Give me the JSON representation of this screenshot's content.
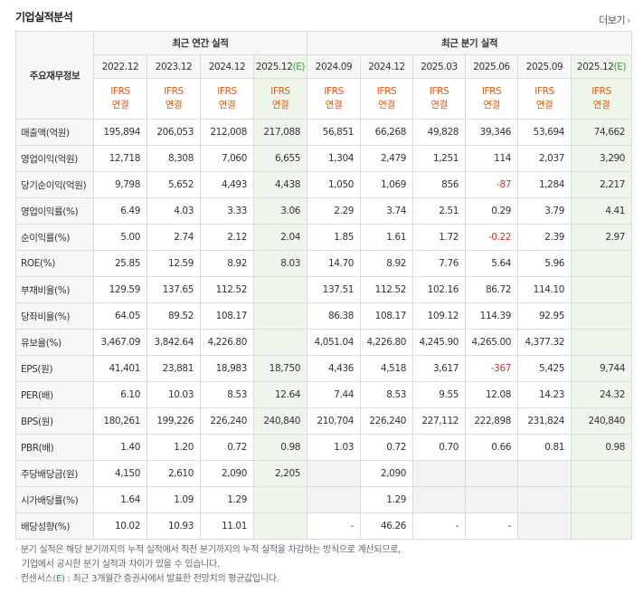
{
  "section": {
    "title": "기업실적분석",
    "more_label": "더보기"
  },
  "header": {
    "row_head": "주요재무정보",
    "annual_group": "최근 연간 실적",
    "quarter_group": "최근 분기 실적",
    "periods": [
      {
        "label": "2022.12",
        "estimate": false
      },
      {
        "label": "2023.12",
        "estimate": false
      },
      {
        "label": "2024.12",
        "estimate": false
      },
      {
        "label": "2025.12",
        "mark": "(E)",
        "estimate": true
      },
      {
        "label": "2024.09",
        "estimate": false
      },
      {
        "label": "2024.12",
        "estimate": false
      },
      {
        "label": "2025.03",
        "estimate": false
      },
      {
        "label": "2025.06",
        "estimate": false
      },
      {
        "label": "2025.09",
        "estimate": false
      },
      {
        "label": "2025.12",
        "mark": "(E)",
        "estimate": true
      }
    ],
    "ifrs_line1": "IFRS",
    "ifrs_line2": "연결"
  },
  "rows": [
    {
      "label": "매출액(억원)",
      "values": [
        "195,894",
        "206,053",
        "212,008",
        "217,088",
        "56,851",
        "66,268",
        "49,828",
        "39,346",
        "53,694",
        "74,662"
      ]
    },
    {
      "label": "영업이익(억원)",
      "values": [
        "12,718",
        "8,308",
        "7,060",
        "6,655",
        "1,304",
        "2,479",
        "1,251",
        "114",
        "2,037",
        "3,290"
      ]
    },
    {
      "label": "당기순이익(억원)",
      "values": [
        "9,798",
        "5,652",
        "4,493",
        "4,438",
        "1,050",
        "1,069",
        "856",
        "-87",
        "1,284",
        "2,217"
      ]
    },
    {
      "label": "영업이익률(%)",
      "values": [
        "6.49",
        "4.03",
        "3.33",
        "3.06",
        "2.29",
        "3.74",
        "2.51",
        "0.29",
        "3.79",
        "4.41"
      ],
      "sep": true
    },
    {
      "label": "순이익률(%)",
      "values": [
        "5.00",
        "2.74",
        "2.12",
        "2.04",
        "1.85",
        "1.61",
        "1.72",
        "-0.22",
        "2.39",
        "2.97"
      ]
    },
    {
      "label": "ROE(%)",
      "values": [
        "25.85",
        "12.59",
        "8.92",
        "8.03",
        "14.70",
        "8.92",
        "7.76",
        "5.64",
        "5.96",
        ""
      ]
    },
    {
      "label": "부채비율(%)",
      "values": [
        "129.59",
        "137.65",
        "112.52",
        "",
        "137.51",
        "112.52",
        "102.16",
        "86.72",
        "114.10",
        ""
      ],
      "sep": true
    },
    {
      "label": "당좌비율(%)",
      "values": [
        "64.05",
        "89.52",
        "108.17",
        "",
        "86.38",
        "108.17",
        "109.12",
        "114.39",
        "92.95",
        ""
      ]
    },
    {
      "label": "유보율(%)",
      "values": [
        "3,467.09",
        "3,842.64",
        "4,226.80",
        "",
        "4,051.04",
        "4,226.80",
        "4,245.90",
        "4,265.00",
        "4,377.32",
        ""
      ]
    },
    {
      "label": "EPS(원)",
      "values": [
        "41,401",
        "23,881",
        "18,983",
        "18,750",
        "4,436",
        "4,518",
        "3,617",
        "-367",
        "5,425",
        "9,744"
      ],
      "sep": true
    },
    {
      "label": "PER(배)",
      "values": [
        "6.10",
        "10.03",
        "8.53",
        "12.64",
        "7.44",
        "8.53",
        "9.55",
        "12.08",
        "14.23",
        "24.32"
      ]
    },
    {
      "label": "BPS(원)",
      "values": [
        "180,261",
        "199,226",
        "226,240",
        "240,840",
        "210,704",
        "226,240",
        "227,112",
        "222,898",
        "231,824",
        "240,840"
      ]
    },
    {
      "label": "PBR(배)",
      "values": [
        "1.40",
        "1.20",
        "0.72",
        "0.98",
        "1.03",
        "0.72",
        "0.70",
        "0.66",
        "0.81",
        "0.98"
      ]
    },
    {
      "label": "주당배당금(원)",
      "values": [
        "4,150",
        "2,610",
        "2,090",
        "2,205",
        "",
        "2,090",
        "",
        "",
        "",
        ""
      ],
      "sep": true
    },
    {
      "label": "시가배당률(%)",
      "values": [
        "1.64",
        "1.09",
        "1.29",
        "",
        "",
        "1.29",
        "",
        "",
        "",
        ""
      ]
    },
    {
      "label": "배당성향(%)",
      "values": [
        "10.02",
        "10.93",
        "11.01",
        "",
        "-",
        "46.26",
        "-",
        "-",
        "",
        ""
      ]
    }
  ],
  "notes": {
    "line1": "분기 실적은 해당 분기까지의 누적 실적에서 직전 분기까지의 누적 실적을 차감하는 방식으로 계산되므로,",
    "line2": "기업에서 공시한 분기 실적과 차이가 있을 수 있습니다.",
    "line3_prefix": "컨센서스",
    "line3_mark": "(E)",
    "line3_suffix": ": 최근 3개월간 증권사에서 발표한 전망치의 평균값입니다."
  },
  "colors": {
    "estimate_bg": "#eef6ec",
    "estimate_mark": "#3a9a34",
    "ifrs_text": "#e8590c",
    "negative": "#e03131"
  }
}
